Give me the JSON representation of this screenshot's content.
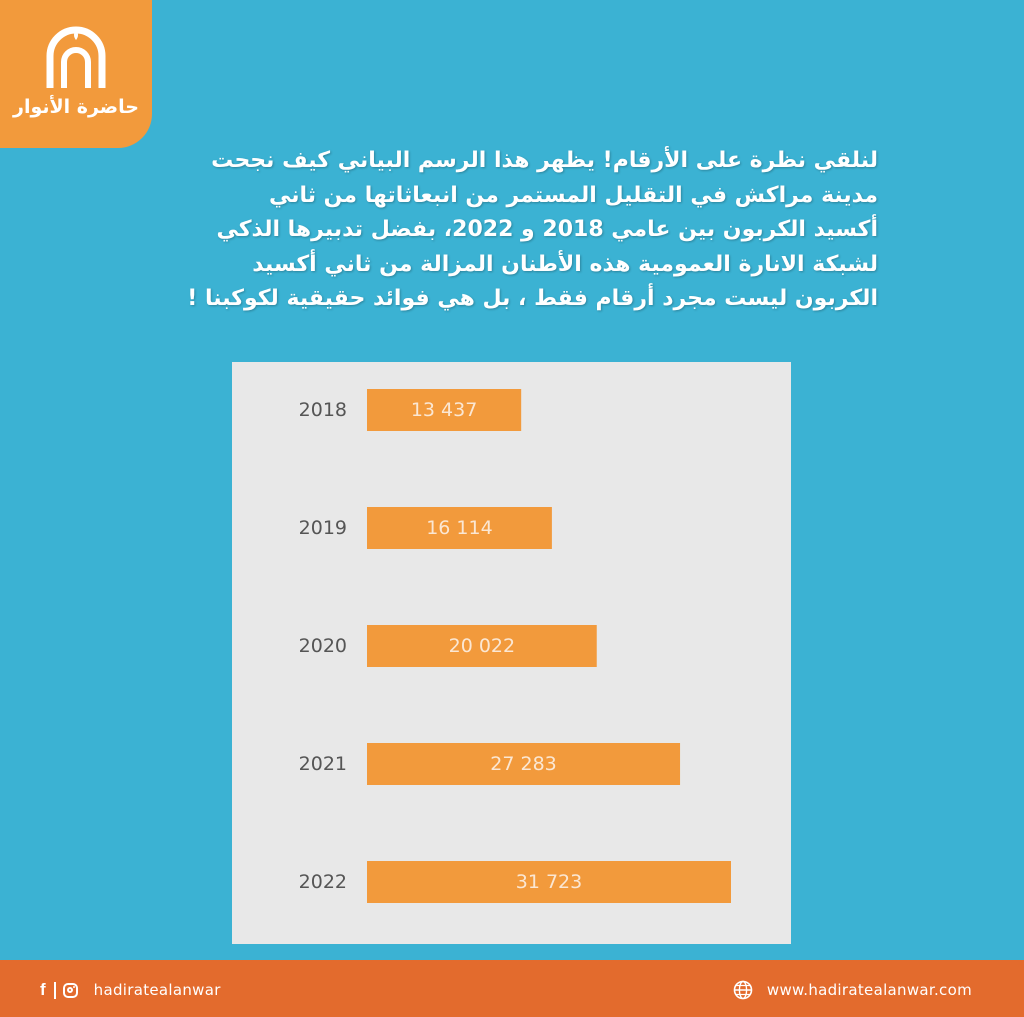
{
  "brand": {
    "name": "حاضرة الأنوار",
    "logo_icon": "arch-logo-icon",
    "accent_color": "#f29a3c",
    "background_color": "#3bb2d3",
    "footer_color": "#e36b2d"
  },
  "headline": [
    "لنلقي نظرة على الأرقام! يظهر هذا الرسم البياني كيف نجحت",
    "مدينة مراكش في التقليل  المستمر من انبعاثاتها من ثاني",
    "أكسيد الكربون بين عامي 2018 و 2022، بفضل تدبيرها الذكي",
    "لشبكة الانارة العمومية هذه الأطنان المزالة من ثاني أكسيد",
    "الكربون ليست مجرد أرقام فقط ، بل هي فوائد حقيقية لكوكبنا !"
  ],
  "chart_data": {
    "type": "bar",
    "orientation": "horizontal",
    "categories": [
      "2018",
      "2019",
      "2020",
      "2021",
      "2022"
    ],
    "values": [
      13437,
      16114,
      20022,
      27283,
      31723
    ],
    "value_labels": [
      "13 437",
      "16 114",
      "20 022",
      "27 283",
      "31 723"
    ],
    "bar_color": "#f29a3c",
    "xlim": [
      0,
      31723
    ],
    "grid": false,
    "legend": "none"
  },
  "footer": {
    "social_icons": [
      "facebook-icon",
      "instagram-icon"
    ],
    "handle": "hadiratealanwar",
    "website_icon": "globe-icon",
    "website": "www.hadiratealanwar.com"
  }
}
